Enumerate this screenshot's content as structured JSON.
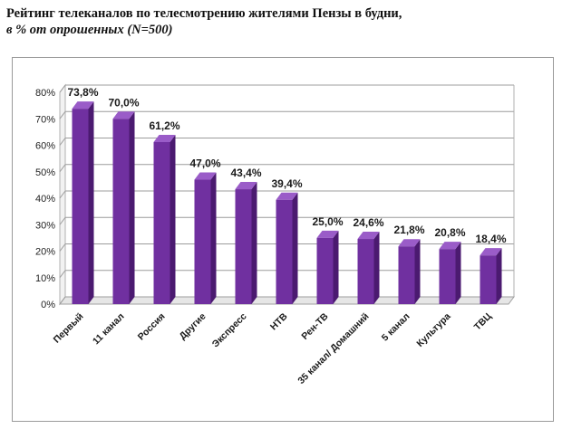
{
  "header": {
    "title": "Рейтинг телеканалов по телесмотрению жителями Пензы в будни,",
    "subtitle": "в % от опрошенных (N=500)"
  },
  "chart_data": {
    "type": "bar",
    "categories": [
      "Первый",
      "11 канал",
      "Россия",
      "Другие",
      "Экспресс",
      "НТВ",
      "Рен-ТВ",
      "35 канал/ Домашний",
      "5 канал",
      "Культура",
      "ТВЦ"
    ],
    "values": [
      73.8,
      70.0,
      61.2,
      47.0,
      43.4,
      39.4,
      25.0,
      24.6,
      21.8,
      20.8,
      18.4
    ],
    "data_labels": [
      "73,8%",
      "70,0%",
      "61,2%",
      "47,0%",
      "43,4%",
      "39,4%",
      "25,0%",
      "24,6%",
      "21,8%",
      "20,8%",
      "18,4%"
    ],
    "y_ticks": [
      0,
      10,
      20,
      30,
      40,
      50,
      60,
      70,
      80
    ],
    "y_tick_labels": [
      "0%",
      "10%",
      "20%",
      "30%",
      "40%",
      "50%",
      "60%",
      "70%",
      "80%"
    ],
    "ylim": [
      0,
      80
    ],
    "grid": true,
    "legend": false,
    "bar_color": "#7030a0",
    "bar_side_color": "#4b1a70",
    "bar_top_color": "#9a5cc8",
    "title": "Рейтинг телеканалов по телесмотрению жителями Пензы в будни,",
    "subtitle": "в % от опрошенных (N=500)",
    "xlabel": "",
    "ylabel": ""
  }
}
